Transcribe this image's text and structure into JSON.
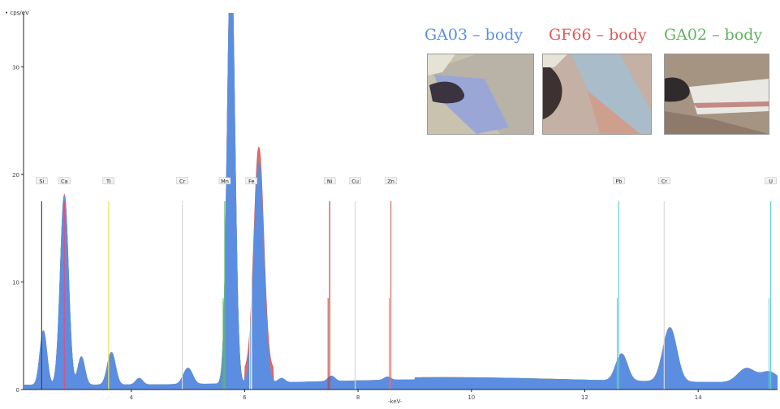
{
  "chart_data": {
    "type": "line",
    "ylabel": "• cps/eV",
    "xlabel": "-keV-",
    "xlim": [
      2.1,
      15.4
    ],
    "ylim": [
      0,
      35
    ],
    "yticks": [
      0,
      10,
      20,
      30
    ],
    "xticks": [
      4,
      6,
      8,
      10,
      12,
      14
    ],
    "tick_labels_x": [
      "4",
      "6",
      "8",
      "10",
      "12",
      "14"
    ],
    "tick_labels_y": [
      "0",
      "10",
      "20",
      "30"
    ],
    "series": [
      {
        "name": "GA03 – body",
        "color": "#5b8ee0"
      },
      {
        "name": "GF66 – body",
        "color": "#e05a5a"
      },
      {
        "name": "GA02 – body",
        "color": "#5fb35f"
      }
    ],
    "peaks": [
      {
        "x": 2.45,
        "h": 5.0,
        "w": 0.06
      },
      {
        "x": 2.82,
        "h": 17.5,
        "w": 0.07
      },
      {
        "x": 3.12,
        "h": 2.6,
        "w": 0.06
      },
      {
        "x": 3.65,
        "h": 3.0,
        "w": 0.07
      },
      {
        "x": 4.14,
        "h": 0.6,
        "w": 0.06
      },
      {
        "x": 5.0,
        "h": 1.5,
        "w": 0.08
      },
      {
        "x": 5.76,
        "h": 40,
        "w": 0.065
      },
      {
        "x": 6.25,
        "h": 20.5,
        "w": 0.085
      },
      {
        "x": 6.65,
        "h": 0.4,
        "w": 0.06
      },
      {
        "x": 7.53,
        "h": 0.5,
        "w": 0.06
      },
      {
        "x": 8.52,
        "h": 0.3,
        "w": 0.06
      },
      {
        "x": 12.65,
        "h": 2.5,
        "w": 0.1
      },
      {
        "x": 13.5,
        "h": 5.0,
        "w": 0.12
      },
      {
        "x": 14.85,
        "h": 1.3,
        "w": 0.15
      },
      {
        "x": 15.25,
        "h": 1.0,
        "w": 0.15
      }
    ],
    "markers": [
      {
        "label": "Si",
        "x": 2.42,
        "color": "#444444",
        "tall": 17.5,
        "short": 0
      },
      {
        "label": "Ca",
        "x": 2.82,
        "color": "#e05080",
        "tall": 17.5,
        "short": 0
      },
      {
        "label": "Ti",
        "x": 3.6,
        "color": "#e8e060",
        "tall": 17.5,
        "short": 0
      },
      {
        "label": "Cr",
        "x": 4.9,
        "color": "#d8d8d8",
        "tall": 17.5,
        "short": 0
      },
      {
        "label": "Mn",
        "x": 5.65,
        "color": "#60c060",
        "tall": 17.5,
        "short": 8.5
      },
      {
        "label": "Fe",
        "x": 6.12,
        "color": "#ffffff",
        "tall": 17.5,
        "short": 8.5
      },
      {
        "label": "Ni",
        "x": 7.5,
        "color": "#c04040",
        "tall": 17.5,
        "short": 8.5
      },
      {
        "label": "Cu",
        "x": 7.95,
        "color": "#d8d8d8",
        "tall": 17.5,
        "short": 0
      },
      {
        "label": "Zn",
        "x": 8.58,
        "color": "#e07070",
        "tall": 17.5,
        "short": 8.5
      },
      {
        "label": "Pb",
        "x": 12.6,
        "color": "#60d0d0",
        "tall": 17.5,
        "short": 8.5
      },
      {
        "label": "Cr",
        "x": 13.4,
        "color": "#d8d8d8",
        "tall": 17.5,
        "short": 0
      },
      {
        "label": "U",
        "x": 15.28,
        "color": "#60d0d0",
        "tall": 17.5,
        "short": 8.5
      }
    ]
  },
  "legend": {
    "ga03": "GA03 – body",
    "gf66": "GF66 – body",
    "ga02": "GA02 – body"
  },
  "colors": {
    "ga03": "#5b8ee0",
    "gf66": "#e05a5a",
    "ga02": "#5fb35f"
  }
}
